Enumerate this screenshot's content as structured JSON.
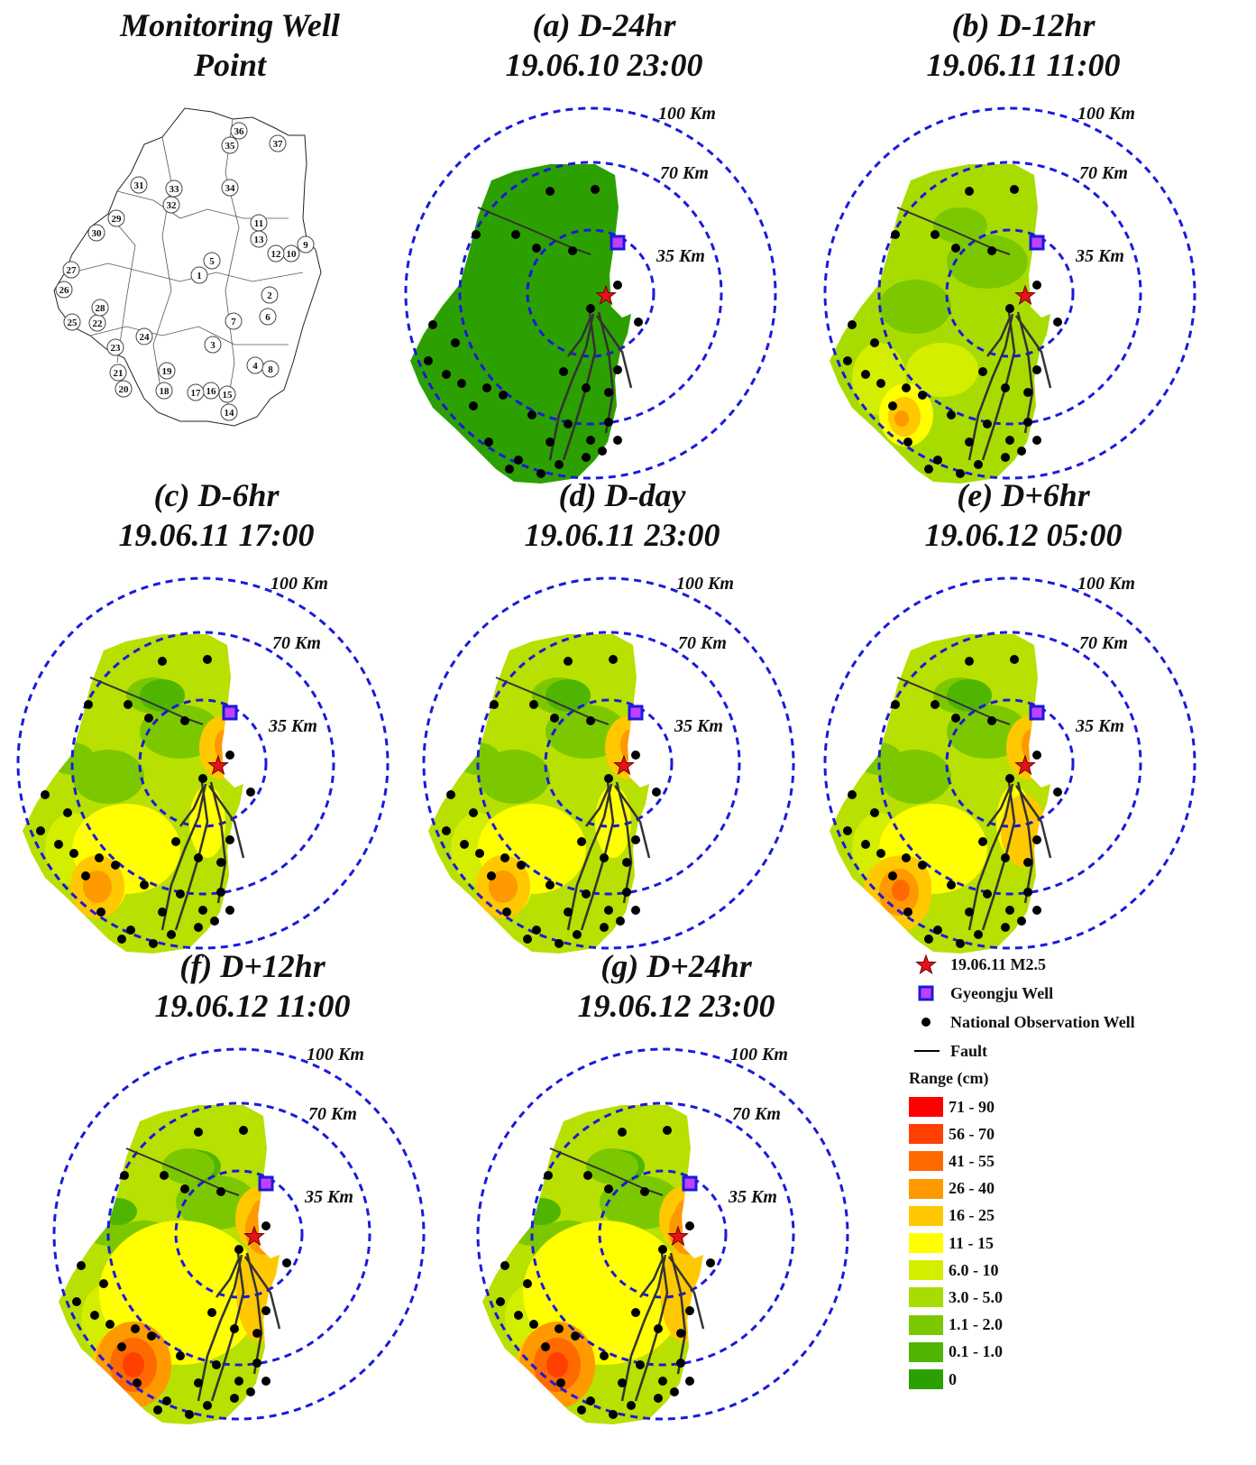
{
  "index_map": {
    "title_line1": "Monitoring Well",
    "title_line2": "Point",
    "well_numbers": [
      "1",
      "2",
      "3",
      "4",
      "5",
      "6",
      "7",
      "8",
      "9",
      "10",
      "11",
      "12",
      "13",
      "14",
      "15",
      "16",
      "17",
      "18",
      "19",
      "20",
      "21",
      "22",
      "23",
      "24",
      "25",
      "26",
      "27",
      "28",
      "29",
      "30",
      "31",
      "32",
      "33",
      "34",
      "35",
      "36",
      "37"
    ]
  },
  "ring_labels": [
    "100 Km",
    "70 Km",
    "35 Km"
  ],
  "panels": [
    {
      "id": "a",
      "title_line1": "(a) D-24hr",
      "title_line2": "19.06.10 23:00",
      "anomaly_level": 0
    },
    {
      "id": "b",
      "title_line1": "(b) D-12hr",
      "title_line2": "19.06.11 11:00",
      "anomaly_level": 1
    },
    {
      "id": "c",
      "title_line1": "(c) D-6hr",
      "title_line2": "19.06.11 17:00",
      "anomaly_level": 2
    },
    {
      "id": "d",
      "title_line1": "(d) D-day",
      "title_line2": "19.06.11 23:00",
      "anomaly_level": 2
    },
    {
      "id": "e",
      "title_line1": "(e) D+6hr",
      "title_line2": "19.06.12 05:00",
      "anomaly_level": 3
    },
    {
      "id": "f",
      "title_line1": "(f) D+12hr",
      "title_line2": "19.06.12 11:00",
      "anomaly_level": 4
    },
    {
      "id": "g",
      "title_line1": "(g) D+24hr",
      "title_line2": "19.06.12 23:00",
      "anomaly_level": 4
    }
  ],
  "legend": {
    "symbols": [
      {
        "label": "19.06.11 M2.5",
        "icon": "red-star-icon"
      },
      {
        "label": "Gyeongju Well",
        "icon": "blue-square-icon"
      },
      {
        "label": "National Observation Well",
        "icon": "black-dot-icon"
      },
      {
        "label": "Fault",
        "icon": "line-icon"
      }
    ],
    "range_title": "Range (cm)",
    "ranges": [
      {
        "label": "71 - 90",
        "color": "#ff0000"
      },
      {
        "label": "56 - 70",
        "color": "#ff4000"
      },
      {
        "label": "41 - 55",
        "color": "#ff6a00"
      },
      {
        "label": "26 - 40",
        "color": "#ff9900"
      },
      {
        "label": "16 - 25",
        "color": "#ffc800"
      },
      {
        "label": "11 - 15",
        "color": "#ffff00"
      },
      {
        "label": "6.0 - 10",
        "color": "#d4ee00"
      },
      {
        "label": "3.0 - 5.0",
        "color": "#a8dc00"
      },
      {
        "label": "1.1 - 2.0",
        "color": "#7cc800"
      },
      {
        "label": "0.1 - 1.0",
        "color": "#4fb500"
      },
      {
        "label": "0",
        "color": "#2ca000"
      }
    ]
  }
}
